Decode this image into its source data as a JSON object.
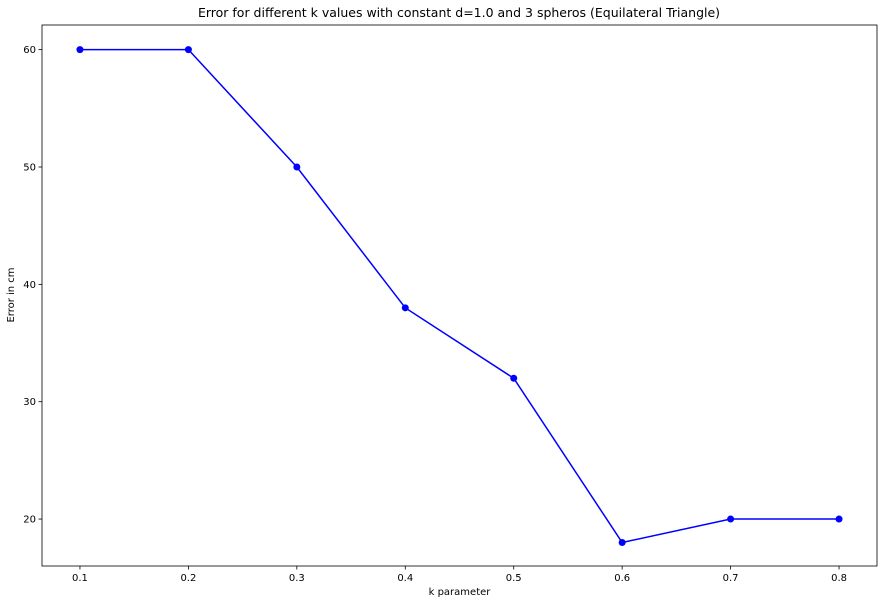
{
  "chart_data": {
    "type": "line",
    "title": "Error for different k values with constant d=1.0 and 3 spheros (Equilateral Triangle)",
    "xlabel": "k parameter",
    "ylabel": "Error in cm",
    "x": [
      0.1,
      0.2,
      0.3,
      0.4,
      0.5,
      0.6,
      0.7,
      0.8
    ],
    "series": [
      {
        "values": [
          60,
          60,
          50,
          38,
          32,
          18,
          20,
          20
        ],
        "color": "#0000ff",
        "marker": "circle"
      }
    ],
    "xlim": [
      0.065,
      0.835
    ],
    "ylim": [
      16.0,
      62.1
    ],
    "xticks": [
      0.1,
      0.2,
      0.3,
      0.4,
      0.5,
      0.6,
      0.7,
      0.8
    ],
    "xtick_labels": [
      "0.1",
      "0.2",
      "0.3",
      "0.4",
      "0.5",
      "0.6",
      "0.7",
      "0.8"
    ],
    "yticks": [
      20,
      30,
      40,
      50,
      60
    ],
    "ytick_labels": [
      "20",
      "30",
      "40",
      "50",
      "60"
    ],
    "grid": false,
    "legend": "none"
  }
}
